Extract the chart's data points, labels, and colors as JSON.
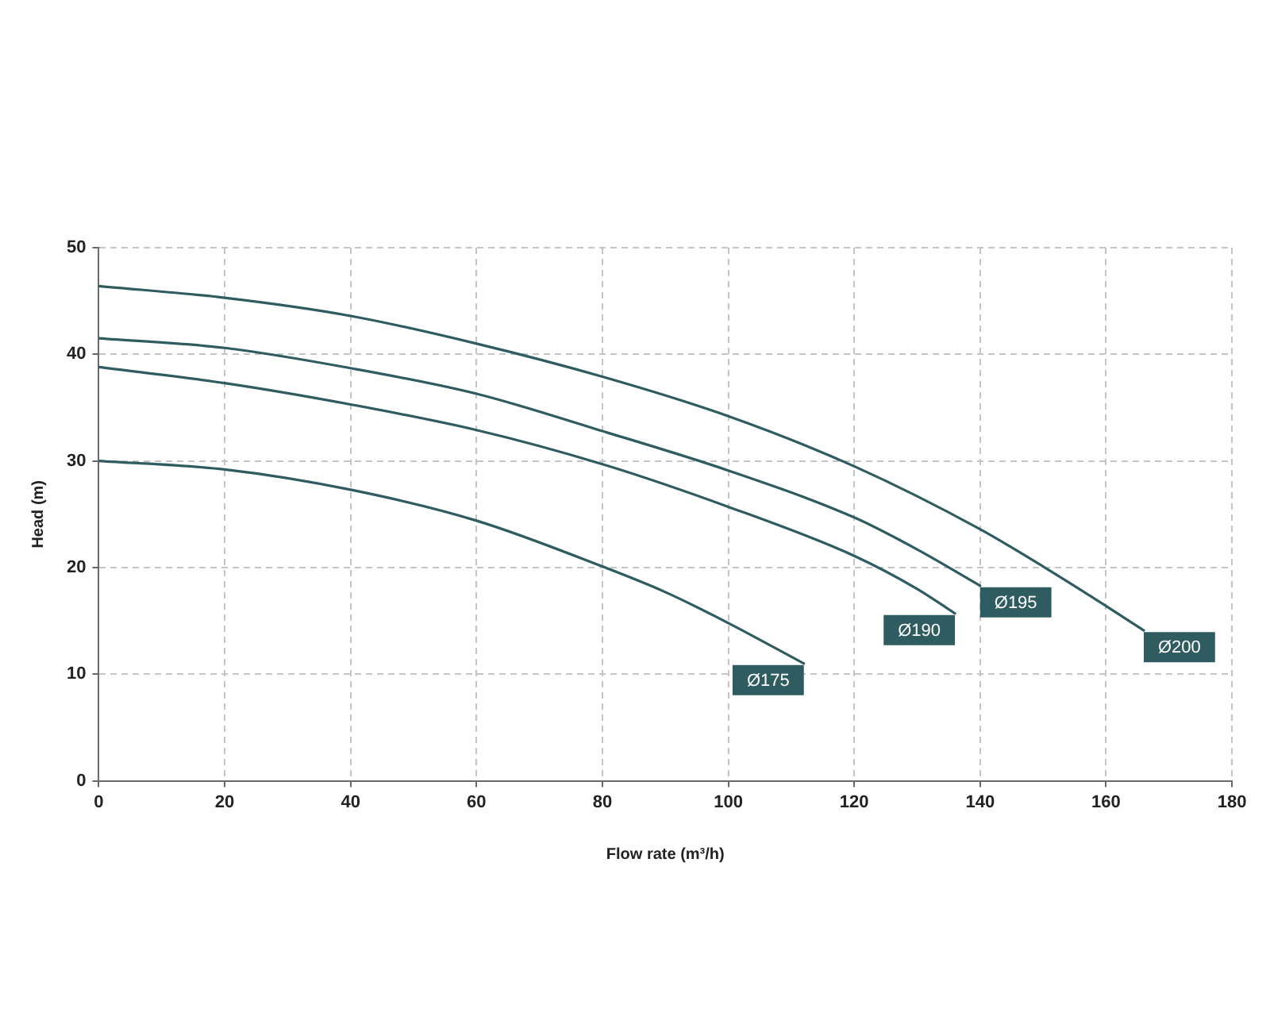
{
  "chart_data": {
    "type": "line",
    "xlabel": "Flow rate (m³/h)",
    "ylabel": "Head (m)",
    "xlim": [
      0,
      180
    ],
    "xticks": [
      0,
      20,
      40,
      60,
      80,
      100,
      120,
      140,
      160,
      180
    ],
    "ylim": [
      0,
      50
    ],
    "yticks": [
      0,
      10,
      20,
      30,
      40,
      50
    ],
    "grid": true,
    "line_style": "solid",
    "series": [
      {
        "name": "Ø175",
        "color": "#2e5c60",
        "x": [
          0,
          20,
          40,
          60,
          80,
          90,
          100,
          112
        ],
        "values": [
          30.0,
          29.2,
          27.3,
          24.4,
          20.1,
          17.7,
          14.8,
          11.0
        ]
      },
      {
        "name": "Ø190",
        "color": "#2e5c60",
        "x": [
          0,
          20,
          40,
          60,
          80,
          100,
          120,
          130,
          136
        ],
        "values": [
          38.8,
          37.3,
          35.3,
          32.9,
          29.7,
          25.7,
          21.1,
          18.0,
          15.7
        ]
      },
      {
        "name": "Ø195",
        "color": "#2e5c60",
        "x": [
          0,
          20,
          40,
          60,
          80,
          100,
          120,
          130,
          140
        ],
        "values": [
          41.5,
          40.6,
          38.7,
          36.3,
          32.8,
          29.1,
          24.7,
          21.7,
          18.3
        ]
      },
      {
        "name": "Ø200",
        "color": "#2e5c60",
        "x": [
          0,
          20,
          40,
          60,
          80,
          100,
          120,
          140,
          150,
          160,
          166
        ],
        "values": [
          46.4,
          45.3,
          43.6,
          41.0,
          37.9,
          34.2,
          29.5,
          23.6,
          20.1,
          16.4,
          14.1
        ]
      }
    ]
  }
}
